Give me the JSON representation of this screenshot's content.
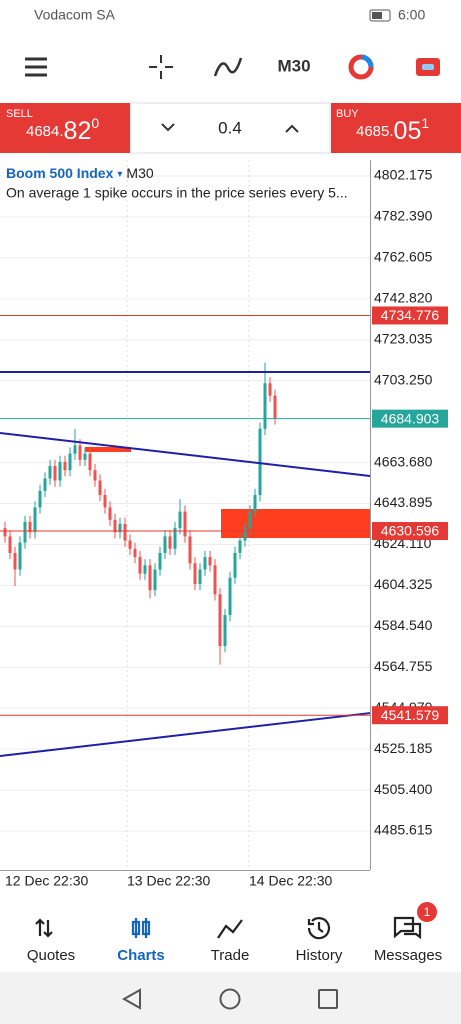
{
  "status_bar": {
    "carrier": "Vodacom SA",
    "time": "6:00"
  },
  "toolbar": {
    "timeframe": "M30"
  },
  "trade_bar": {
    "sell": {
      "label": "SELL",
      "price": "4684.",
      "big": "82",
      "sup": "0"
    },
    "volume": "0.4",
    "buy": {
      "label": "BUY",
      "price": "4685.",
      "big": "05",
      "sup": "1"
    }
  },
  "chart_data": {
    "type": "candlestick",
    "title": "Boom 500 Index",
    "timeframe": "M30",
    "subtitle": "On average 1 spike occurs in the price series every 5...",
    "ylim": [
      4466.77,
      4809.91
    ],
    "yticks": [
      4802.175,
      {
        "value": 4782.39,
        "label": "4782.390"
      },
      4762.605,
      {
        "value": 4742.82,
        "label": "4742.820"
      },
      4723.035,
      {
        "value": 4703.25,
        "label": "4703.250"
      },
      {
        "value": 4663.68,
        "label": "4663.680"
      },
      4643.895,
      {
        "value": 4624.11,
        "label": "4624.110"
      },
      4604.325,
      {
        "value": 4584.54,
        "label": "4584.540"
      },
      4564.755,
      {
        "value": 4544.97,
        "label": "4544.970"
      },
      4525.185,
      {
        "value": 4505.4,
        "label": "4505.400"
      },
      4485.615
    ],
    "x_labels": [
      "12 Dec 22:30",
      "13 Dec 22:30",
      "14 Dec 22:30"
    ],
    "up_color": "#26a69a",
    "down_color": "#ef5350",
    "candles": [
      [
        4632,
        4635,
        4625,
        4628
      ],
      [
        4628,
        4631,
        4617,
        4620
      ],
      [
        4620,
        4623,
        4604,
        4612
      ],
      [
        4612,
        4628,
        4609,
        4625
      ],
      [
        4625,
        4638,
        4622,
        4635
      ],
      [
        4635,
        4638,
        4627,
        4630
      ],
      [
        4630,
        4645,
        4627,
        4642
      ],
      [
        4642,
        4653,
        4639,
        4650
      ],
      [
        4650,
        4659,
        4647,
        4656
      ],
      [
        4656,
        4665,
        4653,
        4662
      ],
      [
        4662,
        4665,
        4652,
        4655
      ],
      [
        4655,
        4667,
        4652,
        4664
      ],
      [
        4664,
        4667,
        4657,
        4660
      ],
      [
        4660,
        4671,
        4657,
        4668
      ],
      [
        4668,
        4680,
        4665,
        4672
      ],
      [
        4672,
        4675,
        4662,
        4665
      ],
      [
        4665,
        4671,
        4662,
        4668
      ],
      [
        4668,
        4671,
        4657,
        4660
      ],
      [
        4660,
        4663,
        4652,
        4655
      ],
      [
        4655,
        4658,
        4645,
        4648
      ],
      [
        4648,
        4651,
        4639,
        4642
      ],
      [
        4642,
        4645,
        4633,
        4636
      ],
      [
        4636,
        4639,
        4627,
        4630
      ],
      [
        4630,
        4637,
        4627,
        4634
      ],
      [
        4634,
        4637,
        4623,
        4626
      ],
      [
        4626,
        4629,
        4619,
        4622
      ],
      [
        4622,
        4625,
        4615,
        4618
      ],
      [
        4618,
        4621,
        4607,
        4610
      ],
      [
        4610,
        4617,
        4607,
        4614
      ],
      [
        4614,
        4617,
        4598,
        4602
      ],
      [
        4602,
        4615,
        4599,
        4612
      ],
      [
        4612,
        4623,
        4609,
        4620
      ],
      [
        4620,
        4631,
        4617,
        4628
      ],
      [
        4628,
        4631,
        4619,
        4622
      ],
      [
        4622,
        4635,
        4619,
        4632
      ],
      [
        4632,
        4646,
        4629,
        4640
      ],
      [
        4640,
        4643,
        4625,
        4628
      ],
      [
        4628,
        4631,
        4612,
        4615
      ],
      [
        4615,
        4618,
        4602,
        4605
      ],
      [
        4605,
        4615,
        4602,
        4612
      ],
      [
        4612,
        4621,
        4609,
        4618
      ],
      [
        4618,
        4621,
        4611,
        4614
      ],
      [
        4614,
        4617,
        4597,
        4600
      ],
      [
        4600,
        4603,
        4566,
        4575
      ],
      [
        4575,
        4593,
        4572,
        4590
      ],
      [
        4590,
        4611,
        4587,
        4608
      ],
      [
        4608,
        4623,
        4605,
        4620
      ],
      [
        4620,
        4629,
        4617,
        4626
      ],
      [
        4626,
        4635,
        4623,
        4632
      ],
      [
        4632,
        4643,
        4629,
        4640
      ],
      [
        4640,
        4651,
        4637,
        4648
      ],
      [
        4648,
        4683,
        4645,
        4680
      ],
      [
        4680,
        4712,
        4677,
        4702
      ],
      [
        4702,
        4705,
        4693,
        4696
      ],
      [
        4696,
        4699,
        4682,
        4685
      ]
    ],
    "price_lines": [
      {
        "value": 4734.776,
        "color": "#e53935"
      },
      {
        "value": 4684.903,
        "color": "#26a69a"
      },
      {
        "value": 4630.596,
        "color": "#e53935"
      },
      {
        "value": 4541.579,
        "color": "#e53935"
      }
    ],
    "trend_lines": [
      {
        "values": [
          4677.96,
          4657.18
        ],
        "color": "#1f1fa8"
      },
      {
        "values": [
          4707.44,
          4707.44
        ],
        "color": "#1f1fa8"
      },
      {
        "values": [
          4521.84,
          4542.62
        ],
        "color": "#1f1fa8"
      }
    ],
    "zones": [
      {
        "values": [
          4641.23,
          4627.21
        ],
        "color": "#ff3d1f"
      },
      {
        "values": [
          4671.2,
          4668.8
        ],
        "color": "#ff3d1f"
      }
    ]
  },
  "bottom_nav": {
    "items": [
      "Quotes",
      "Charts",
      "Trade",
      "History",
      "Messages"
    ],
    "badge": "1"
  }
}
